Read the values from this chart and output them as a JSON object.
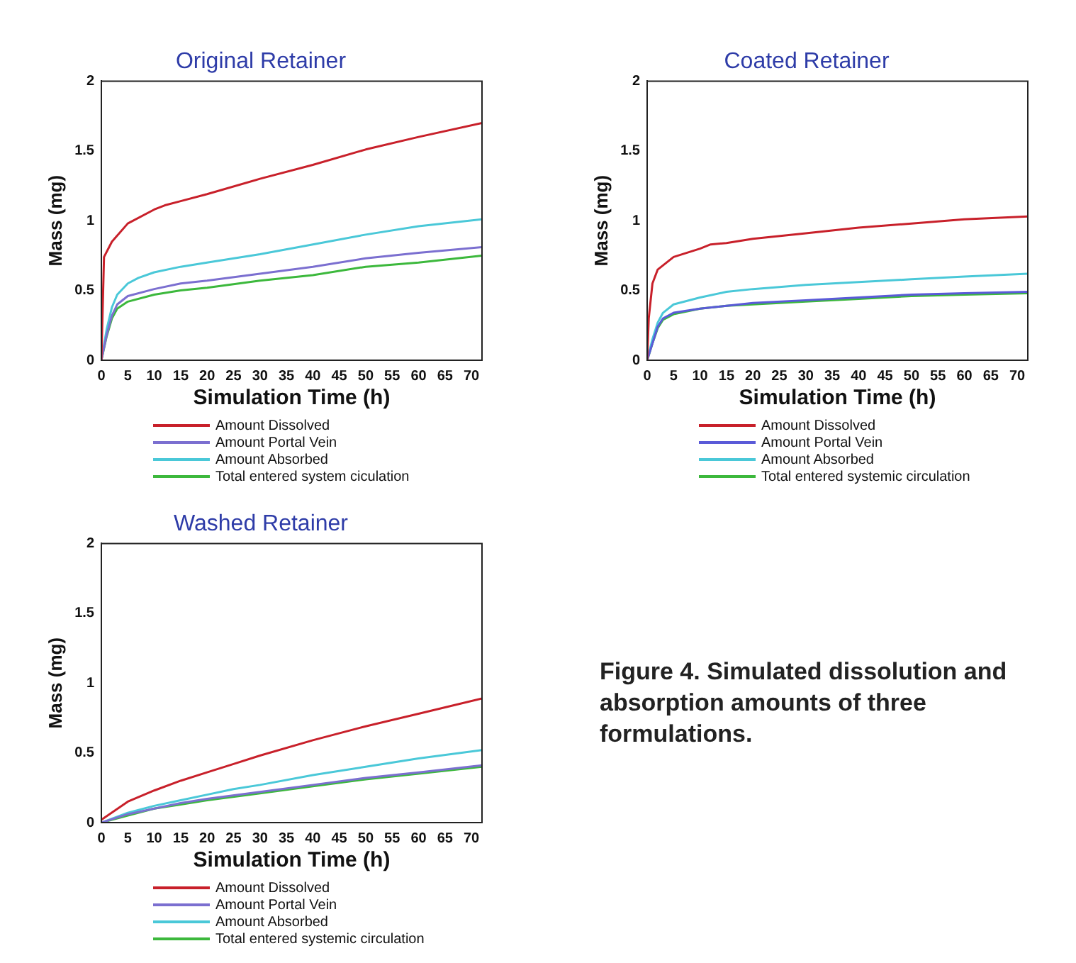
{
  "chart_data": [
    {
      "type": "line",
      "title": "Original Retainer",
      "xlabel": "Simulation Time (h)",
      "ylabel": "Mass (mg)",
      "xlim": [
        0,
        72
      ],
      "xticks": [
        0,
        5,
        10,
        15,
        20,
        25,
        30,
        35,
        40,
        45,
        50,
        55,
        60,
        65,
        70
      ],
      "ylim": [
        0,
        2
      ],
      "yticks": [
        0,
        0.5,
        1,
        1.5,
        2
      ],
      "grid": false,
      "legend": "bottom",
      "marker": "none",
      "line_style": "solid",
      "series": [
        {
          "name": "Amount Dissolved",
          "color": "#c8202a",
          "x": [
            0,
            0.5,
            2,
            5,
            10,
            12,
            15,
            20,
            30,
            40,
            50,
            60,
            72
          ],
          "values": [
            0,
            0.74,
            0.85,
            0.98,
            1.08,
            1.11,
            1.14,
            1.19,
            1.3,
            1.4,
            1.51,
            1.6,
            1.7
          ]
        },
        {
          "name": "Amount Portal Vein",
          "color": "#7b6fd0",
          "x": [
            0,
            1,
            2,
            3,
            5,
            10,
            15,
            20,
            30,
            40,
            50,
            60,
            72
          ],
          "values": [
            0,
            0.18,
            0.32,
            0.4,
            0.46,
            0.51,
            0.55,
            0.57,
            0.62,
            0.67,
            0.73,
            0.77,
            0.81
          ]
        },
        {
          "name": "Amount Absorbed",
          "color": "#4ac8d8",
          "x": [
            0,
            1,
            2,
            3,
            5,
            7,
            10,
            15,
            20,
            30,
            40,
            50,
            60,
            72
          ],
          "values": [
            0,
            0.22,
            0.38,
            0.47,
            0.55,
            0.59,
            0.63,
            0.67,
            0.7,
            0.76,
            0.83,
            0.9,
            0.96,
            1.01
          ]
        },
        {
          "name": "Total entered system ciculation",
          "color": "#3cb83c",
          "x": [
            0,
            1,
            2,
            3,
            5,
            10,
            15,
            20,
            30,
            40,
            50,
            60,
            72
          ],
          "values": [
            0,
            0.17,
            0.3,
            0.37,
            0.42,
            0.47,
            0.5,
            0.52,
            0.57,
            0.61,
            0.67,
            0.7,
            0.75
          ]
        }
      ]
    },
    {
      "type": "line",
      "title": "Coated Retainer",
      "xlabel": "Simulation Time (h)",
      "ylabel": "Mass (mg)",
      "xlim": [
        0,
        72
      ],
      "xticks": [
        0,
        5,
        10,
        15,
        20,
        25,
        30,
        35,
        40,
        45,
        50,
        55,
        60,
        65,
        70
      ],
      "ylim": [
        0,
        2
      ],
      "yticks": [
        0,
        0.5,
        1,
        1.5,
        2
      ],
      "grid": false,
      "legend": "bottom",
      "marker": "none",
      "line_style": "solid",
      "series": [
        {
          "name": "Amount Dissolved",
          "color": "#c8202a",
          "x": [
            0,
            0.3,
            1,
            2,
            5,
            10,
            12,
            15,
            20,
            30,
            40,
            50,
            60,
            72
          ],
          "values": [
            0,
            0.3,
            0.55,
            0.65,
            0.74,
            0.8,
            0.83,
            0.84,
            0.87,
            0.91,
            0.95,
            0.98,
            1.01,
            1.03
          ]
        },
        {
          "name": "Amount Portal Vein",
          "color": "#5a5ad8",
          "x": [
            0,
            1,
            2,
            3,
            5,
            10,
            15,
            20,
            30,
            40,
            50,
            60,
            72
          ],
          "values": [
            0,
            0.12,
            0.24,
            0.3,
            0.34,
            0.37,
            0.39,
            0.41,
            0.43,
            0.45,
            0.47,
            0.48,
            0.49
          ]
        },
        {
          "name": "Amount Absorbed",
          "color": "#4ac8d8",
          "x": [
            0,
            1,
            2,
            3,
            5,
            10,
            15,
            20,
            30,
            40,
            50,
            60,
            72
          ],
          "values": [
            0,
            0.15,
            0.27,
            0.34,
            0.4,
            0.45,
            0.49,
            0.51,
            0.54,
            0.56,
            0.58,
            0.6,
            0.62
          ]
        },
        {
          "name": "Total entered systemic circulation",
          "color": "#3cb83c",
          "x": [
            0,
            1,
            2,
            3,
            5,
            10,
            15,
            20,
            30,
            40,
            50,
            60,
            72
          ],
          "values": [
            0,
            0.12,
            0.23,
            0.29,
            0.33,
            0.37,
            0.39,
            0.4,
            0.42,
            0.44,
            0.46,
            0.47,
            0.48
          ]
        }
      ]
    },
    {
      "type": "line",
      "title": "Washed Retainer",
      "xlabel": "Simulation Time (h)",
      "ylabel": "Mass (mg)",
      "xlim": [
        0,
        72
      ],
      "xticks": [
        0,
        5,
        10,
        15,
        20,
        25,
        30,
        35,
        40,
        45,
        50,
        55,
        60,
        65,
        70
      ],
      "ylim": [
        0,
        2
      ],
      "yticks": [
        0,
        0.5,
        1,
        1.5,
        2
      ],
      "grid": false,
      "legend": "bottom",
      "marker": "none",
      "line_style": "solid",
      "series": [
        {
          "name": "Amount Dissolved",
          "color": "#c8202a",
          "x": [
            0,
            5,
            10,
            15,
            20,
            25,
            30,
            40,
            50,
            60,
            72
          ],
          "values": [
            0.02,
            0.15,
            0.23,
            0.3,
            0.36,
            0.42,
            0.48,
            0.59,
            0.69,
            0.78,
            0.89
          ]
        },
        {
          "name": "Amount Portal Vein",
          "color": "#7b6fd0",
          "x": [
            0,
            5,
            10,
            15,
            20,
            30,
            40,
            50,
            60,
            72
          ],
          "values": [
            0,
            0.06,
            0.1,
            0.14,
            0.17,
            0.22,
            0.27,
            0.32,
            0.36,
            0.41
          ]
        },
        {
          "name": "Amount Absorbed",
          "color": "#4ac8d8",
          "x": [
            0,
            5,
            10,
            15,
            20,
            25,
            30,
            40,
            50,
            60,
            72
          ],
          "values": [
            0,
            0.07,
            0.12,
            0.16,
            0.2,
            0.24,
            0.27,
            0.34,
            0.4,
            0.46,
            0.52
          ]
        },
        {
          "name": "Total entered systemic circulation",
          "color": "#3cb83c",
          "x": [
            0,
            5,
            10,
            15,
            20,
            30,
            40,
            50,
            60,
            72
          ],
          "values": [
            0,
            0.05,
            0.1,
            0.13,
            0.16,
            0.21,
            0.26,
            0.31,
            0.35,
            0.4
          ]
        }
      ]
    },
    {
      "type": "other",
      "annotations": [
        "Figure 4. Simulated dissolution and absorption amounts of three formulations."
      ]
    }
  ]
}
